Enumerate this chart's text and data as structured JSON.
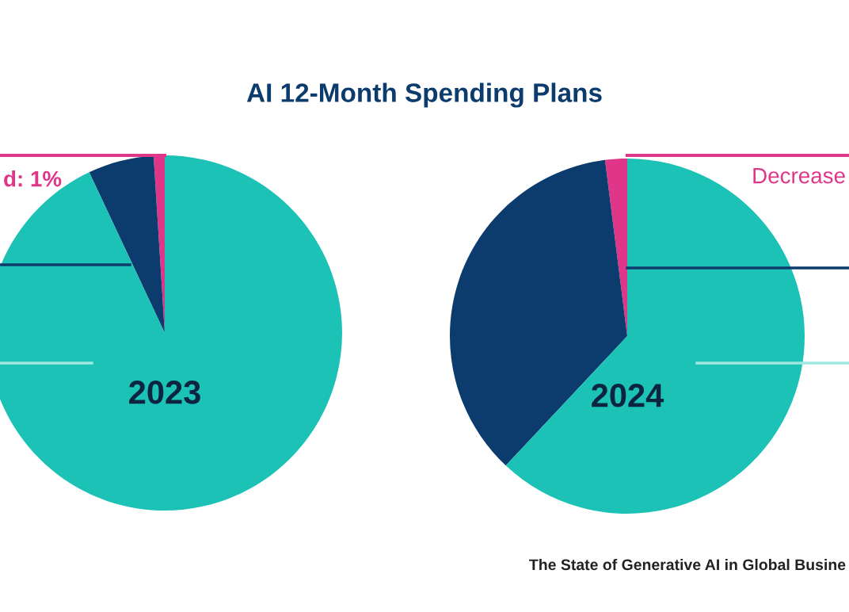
{
  "chart_data": [
    {
      "type": "pie",
      "title": "AI 12-Month Spending Plans",
      "subtitle": "2023",
      "categories": [
        null,
        null,
        null
      ],
      "values": [
        1,
        6,
        93
      ],
      "colors": [
        "#e0368a",
        "#0c3c6e",
        "#1cc2b6"
      ],
      "annotations": [
        "d: 1%"
      ]
    },
    {
      "type": "pie",
      "subtitle": "2024",
      "categories": [
        null,
        null,
        null
      ],
      "values": [
        2,
        36,
        62
      ],
      "colors": [
        "#e0368a",
        "#0c3c6e",
        "#1cc2b6"
      ],
      "annotations": [
        "Decrease",
        "The State of Generative AI in Global Busine"
      ]
    }
  ]
}
